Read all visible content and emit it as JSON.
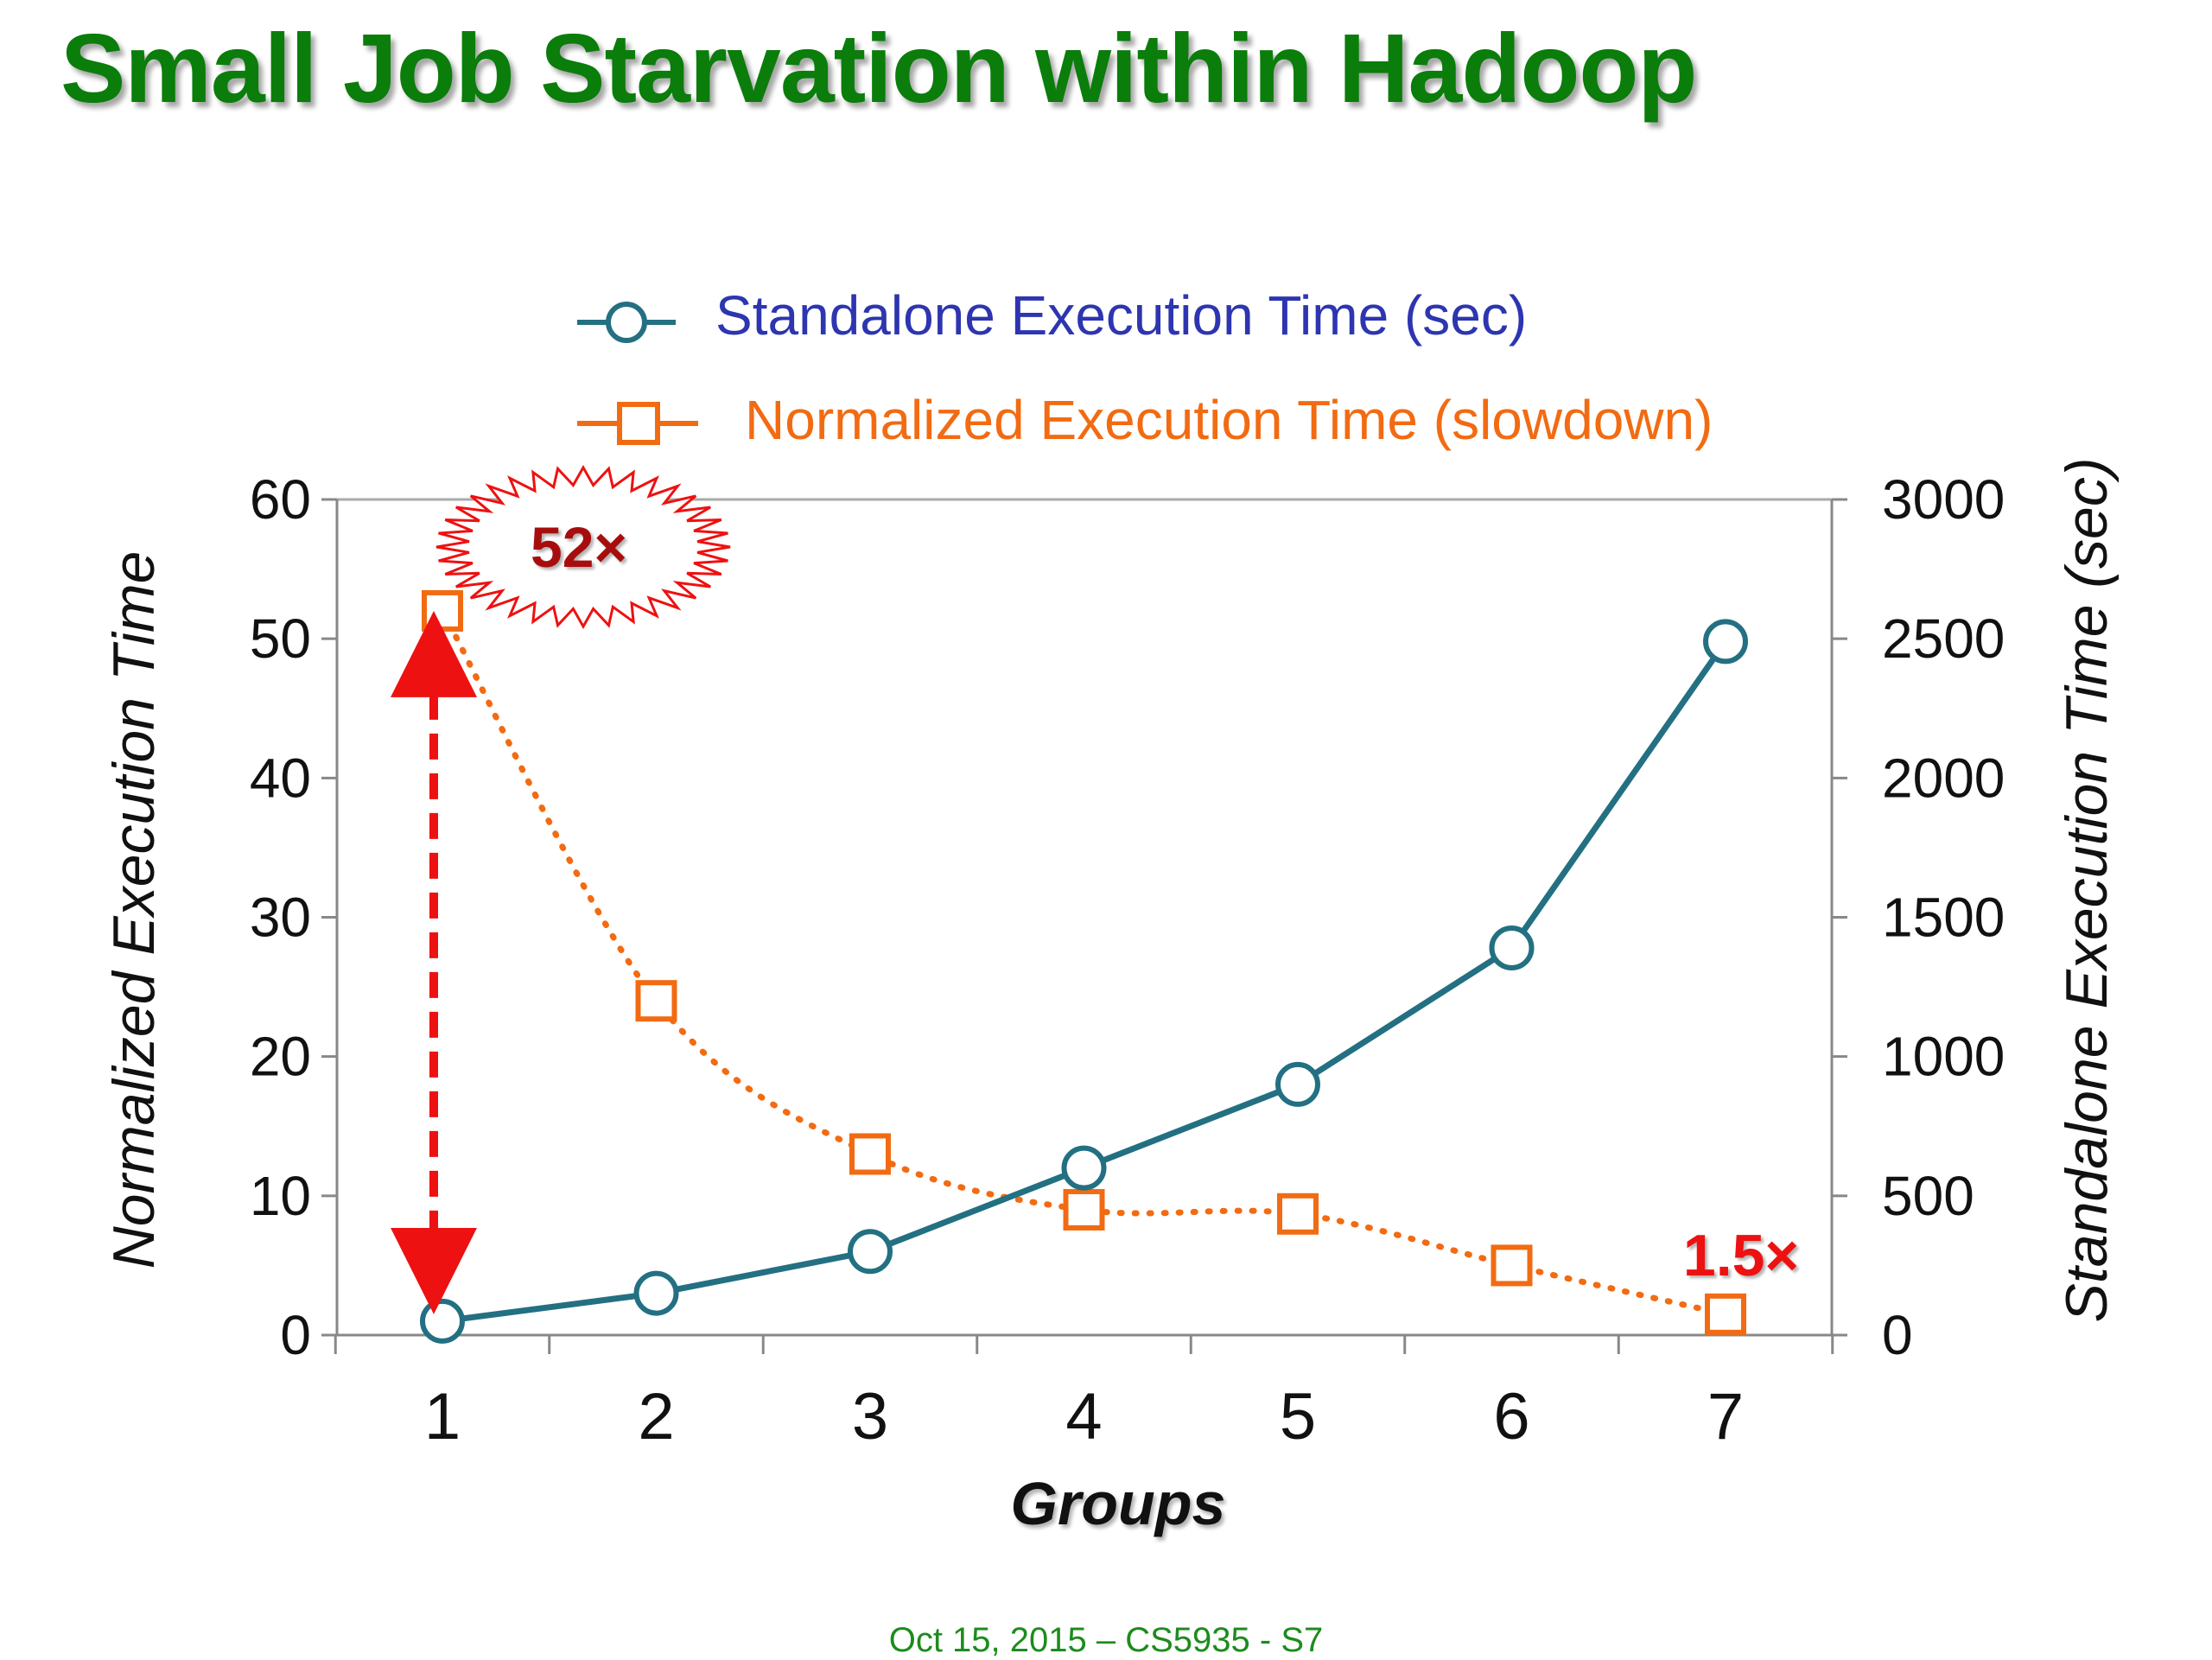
{
  "slide": {
    "title": "Small Job Starvation within Hadoop",
    "footer": "Oct 15, 2015 – CS5935 - S7"
  },
  "colors": {
    "title": "#0a7d0a",
    "teal": "#237082",
    "orange": "#f26b12",
    "red": "#ee1111",
    "darkred": "#a80d0d",
    "legend_blue": "#2d35b0"
  },
  "chart_data": {
    "type": "line",
    "x": [
      1,
      2,
      3,
      4,
      5,
      6,
      7
    ],
    "xlabel": "Groups",
    "ylabel_left": "Normalized Execution Time",
    "ylabel_right": "Standalone Execution Time (sec)",
    "ylim_left": [
      0,
      60
    ],
    "ylim_right": [
      0,
      3000
    ],
    "yticks_left": [
      "0",
      "10",
      "20",
      "30",
      "40",
      "50",
      "60"
    ],
    "yticks_right": [
      "0",
      "500",
      "1000",
      "1500",
      "2000",
      "2500",
      "3000"
    ],
    "xticks": [
      "1",
      "2",
      "3",
      "4",
      "5",
      "6",
      "7"
    ],
    "legend_position": "top",
    "series": [
      {
        "name": "Standalone Execution Time (sec)",
        "axis": "right",
        "marker": "circle",
        "line": "solid",
        "values": [
          50,
          150,
          300,
          600,
          900,
          1390,
          2490
        ]
      },
      {
        "name": "Normalized Execution Time (slowdown)",
        "axis": "left",
        "marker": "square",
        "line": "dotted",
        "values": [
          52,
          24,
          13,
          9,
          8.7,
          5,
          1.5
        ]
      }
    ],
    "annotations": [
      {
        "text": "52×",
        "x": 1,
        "style": "starburst"
      },
      {
        "text": "1.5×",
        "x": 7,
        "style": "label"
      }
    ],
    "arrow": {
      "x": 1,
      "from_left_value": 52,
      "to_right_value": 50
    }
  }
}
